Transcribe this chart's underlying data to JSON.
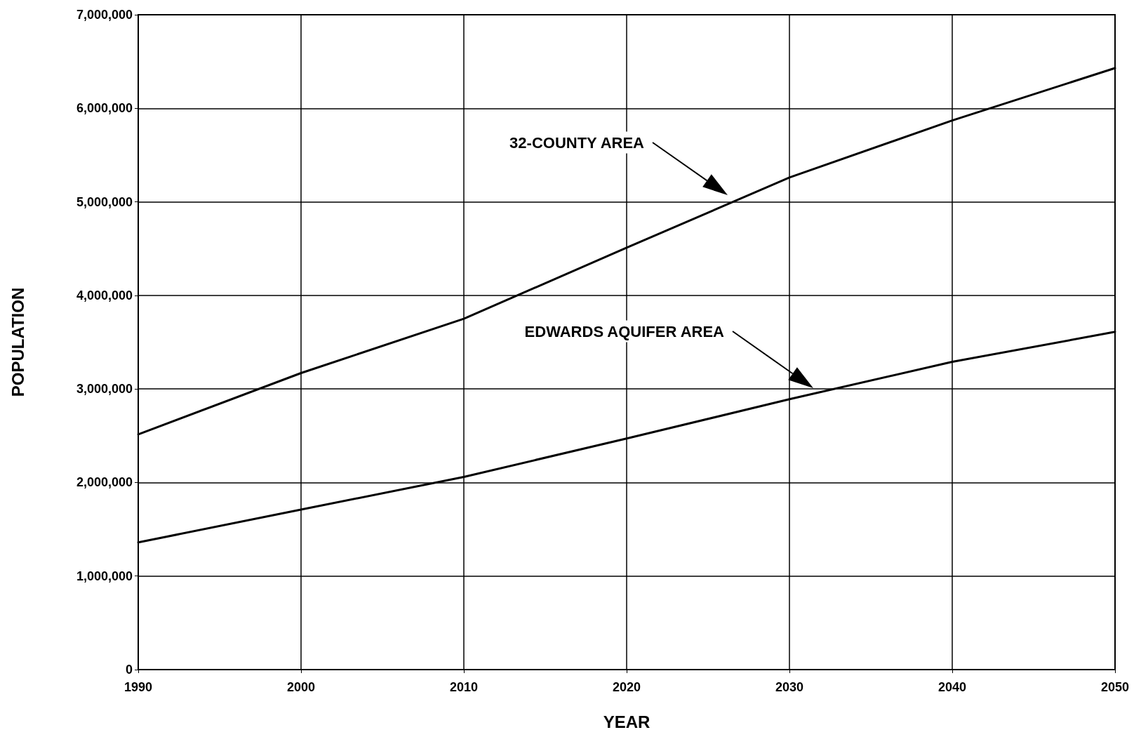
{
  "chart_data": {
    "type": "line",
    "xlabel": "YEAR",
    "ylabel": "POPULATION",
    "x": [
      1990,
      2000,
      2010,
      2020,
      2030,
      2040,
      2050
    ],
    "series": [
      {
        "color": "#000000",
        "values": [
          2515000,
          3170000,
          3750000,
          4510000,
          5260000,
          5870000,
          6430000
        ]
      },
      {
        "color": "#000000",
        "values": [
          1360000,
          1710000,
          2060000,
          2470000,
          2890000,
          3290000,
          3610000
        ]
      }
    ],
    "xlim": [
      1990,
      2050
    ],
    "xticks": [
      1990,
      2000,
      2010,
      2020,
      2030,
      2040,
      2050
    ],
    "ylim": [
      0,
      7000000
    ],
    "yticks": [
      0,
      {
        "value": 1000000,
        "label": "1,000,000"
      },
      {
        "value": 2000000,
        "label": "2,000,000"
      },
      {
        "value": 3000000,
        "label": "3,000,000"
      },
      {
        "value": 4000000,
        "label": "4,000,000"
      },
      {
        "value": 5000000,
        "label": "5,000,000"
      },
      {
        "value": 6000000,
        "label": "6,000,000"
      },
      {
        "value": 7000000,
        "label": "7,000,000"
      }
    ],
    "grid": true,
    "marker": "none",
    "line_style": "solid",
    "annotations": [
      "32-COUNTY AREA",
      "EDWARDS AQUIFER AREA"
    ]
  }
}
